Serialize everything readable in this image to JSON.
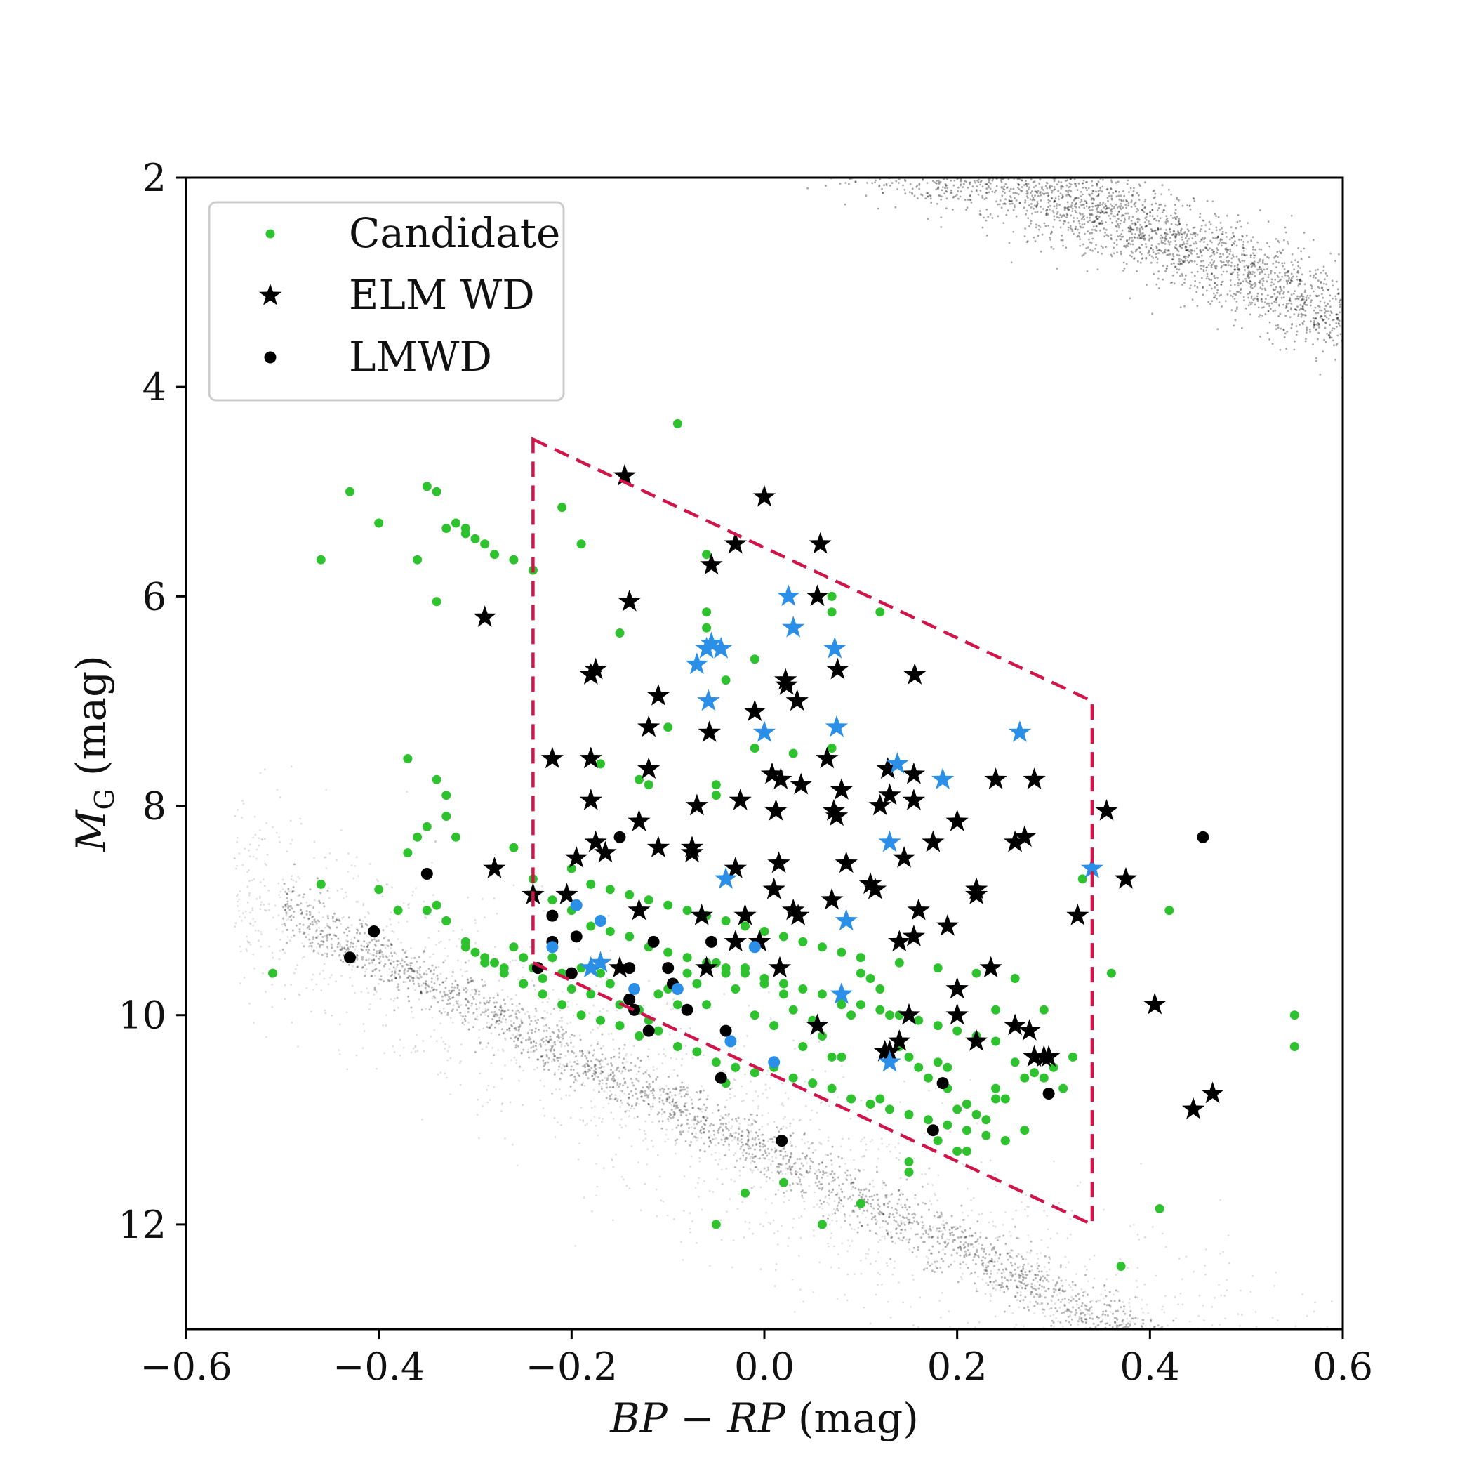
{
  "chart_data": {
    "type": "scatter",
    "title": "",
    "xlabel": "BP − RP (mag)",
    "ylabel": "M_G (mag)",
    "xlabel_parts": {
      "math": "BP − RP",
      "unit": "(mag)"
    },
    "ylabel_parts": {
      "math": "M",
      "subscript": "G",
      "unit": "(mag)"
    },
    "xlim": [
      -0.6,
      0.6
    ],
    "ylim": [
      13.0,
      2.0
    ],
    "y_inverted": true,
    "grid": false,
    "legend_position": "top-left",
    "x_ticks": [
      -0.6,
      -0.4,
      -0.2,
      0.0,
      0.2,
      0.4,
      0.6
    ],
    "x_tick_labels": [
      "−0.6",
      "−0.4",
      "−0.2",
      "0.0",
      "0.2",
      "0.4",
      "0.6"
    ],
    "y_ticks": [
      2,
      4,
      6,
      8,
      10,
      12
    ],
    "y_tick_labels": [
      "2",
      "4",
      "6",
      "8",
      "10",
      "12"
    ],
    "colors": {
      "candidate": "#2fc22f",
      "highlight": "#2b8fe8",
      "black": "#000000",
      "selection_box": "#d0154a",
      "background_points": "#000000"
    },
    "selection_region": {
      "style": "dashed",
      "vertices": [
        [
          -0.24,
          4.5
        ],
        [
          0.34,
          7.0
        ],
        [
          0.34,
          12.0
        ],
        [
          -0.24,
          9.5
        ]
      ]
    },
    "legend": [
      {
        "label": "Candidate",
        "marker": "small-dot",
        "color": "#2fc22f"
      },
      {
        "label": "ELM WD",
        "marker": "star",
        "color": "#000000"
      },
      {
        "label": "LMWD",
        "marker": "dot",
        "color": "#000000"
      }
    ],
    "series": [
      {
        "name": "Candidate",
        "marker": "small-dot",
        "color": "#2fc22f",
        "x": [
          -0.43,
          -0.4,
          -0.35,
          -0.34,
          -0.33,
          -0.32,
          -0.31,
          -0.31,
          -0.3,
          -0.29,
          -0.28,
          -0.26,
          -0.24,
          -0.46,
          -0.36,
          -0.34,
          -0.21,
          -0.19,
          -0.09,
          -0.06,
          -0.15,
          -0.06,
          -0.05,
          -0.01,
          0.07,
          0.07,
          -0.06,
          -0.04,
          -0.1,
          -0.17,
          -0.13,
          -0.12,
          -0.05,
          -0.01,
          0.03,
          0.07,
          0.12,
          -0.37,
          -0.34,
          -0.33,
          -0.33,
          -0.32,
          -0.35,
          -0.36,
          -0.37,
          -0.4,
          -0.38,
          -0.34,
          -0.33,
          -0.31,
          -0.3,
          -0.29,
          -0.28,
          -0.27,
          -0.26,
          -0.25,
          -0.25,
          -0.24,
          -0.23,
          -0.22,
          -0.21,
          -0.2,
          -0.19,
          -0.18,
          -0.17,
          -0.16,
          -0.15,
          -0.14,
          -0.13,
          -0.12,
          -0.11,
          -0.1,
          -0.09,
          -0.08,
          -0.07,
          -0.06,
          -0.05,
          -0.04,
          -0.03,
          -0.02,
          -0.01,
          0.0,
          0.01,
          0.02,
          0.03,
          0.04,
          0.05,
          0.06,
          0.07,
          0.08,
          0.09,
          0.1,
          0.11,
          0.12,
          0.13,
          0.14,
          0.15,
          0.16,
          0.17,
          0.18,
          0.19,
          0.2,
          0.21,
          0.22,
          0.23,
          0.24,
          0.25,
          0.26,
          0.27,
          0.28,
          0.29,
          0.3,
          0.31,
          0.32,
          -0.35,
          -0.33,
          -0.31,
          -0.29,
          -0.27,
          -0.25,
          -0.23,
          -0.21,
          -0.19,
          -0.17,
          -0.15,
          -0.13,
          -0.11,
          -0.09,
          -0.07,
          -0.05,
          -0.03,
          -0.01,
          0.01,
          0.03,
          0.05,
          0.07,
          0.09,
          0.11,
          0.13,
          0.15,
          0.17,
          0.19,
          0.21,
          0.23,
          0.25,
          -0.26,
          -0.24,
          -0.22,
          -0.2,
          -0.18,
          -0.16,
          -0.14,
          -0.12,
          -0.1,
          -0.08,
          -0.06,
          -0.04,
          -0.02,
          0.0,
          0.02,
          0.04,
          0.06,
          0.08,
          0.1,
          0.12,
          0.14,
          0.16,
          0.18,
          0.2,
          0.22,
          0.24,
          -0.2,
          -0.18,
          -0.16,
          -0.14,
          -0.12,
          -0.1,
          -0.08,
          -0.06,
          -0.04,
          -0.02,
          0.0,
          0.02,
          0.04,
          0.06,
          0.08,
          0.1,
          0.14,
          0.18,
          0.22,
          0.26,
          -0.05,
          -0.02,
          0.02,
          0.06,
          0.1,
          0.15,
          0.2,
          0.25,
          -0.51,
          -0.46,
          0.37,
          0.41,
          0.42,
          0.55,
          0.55,
          0.36,
          0.33,
          0.29,
          0.27,
          0.24,
          0.21,
          0.18,
          0.15,
          0.12,
          -0.04,
          0.08,
          0.19,
          0.24
        ],
        "y": [
          5.0,
          5.3,
          4.95,
          5.0,
          5.35,
          5.3,
          5.35,
          5.4,
          5.45,
          5.5,
          5.6,
          5.65,
          5.75,
          5.65,
          5.65,
          6.05,
          5.15,
          5.5,
          4.35,
          5.6,
          6.35,
          6.15,
          7.8,
          6.6,
          6.0,
          6.15,
          6.3,
          6.8,
          7.25,
          7.6,
          7.75,
          7.8,
          7.9,
          7.45,
          7.5,
          7.45,
          6.15,
          7.55,
          7.75,
          7.9,
          8.1,
          8.3,
          8.2,
          8.3,
          8.45,
          8.8,
          9.0,
          8.95,
          9.1,
          9.3,
          9.4,
          9.45,
          9.5,
          9.55,
          9.35,
          9.45,
          9.7,
          9.55,
          9.65,
          9.45,
          9.6,
          9.75,
          9.55,
          9.8,
          9.6,
          9.7,
          9.9,
          9.85,
          9.95,
          10.05,
          9.8,
          9.75,
          9.9,
          9.6,
          9.7,
          9.9,
          9.5,
          9.6,
          9.75,
          9.55,
          10.0,
          9.7,
          10.1,
          9.8,
          9.95,
          10.3,
          10.05,
          10.2,
          10.4,
          9.9,
          10.0,
          9.6,
          9.65,
          9.75,
          10.0,
          10.3,
          10.4,
          10.5,
          10.6,
          10.45,
          10.7,
          10.9,
          10.85,
          10.95,
          11.0,
          10.7,
          10.8,
          10.45,
          10.6,
          10.55,
          10.6,
          10.5,
          10.7,
          10.4,
          9.0,
          9.1,
          9.35,
          9.5,
          9.6,
          9.7,
          9.8,
          9.9,
          10.0,
          10.05,
          10.1,
          10.2,
          10.15,
          10.3,
          10.35,
          10.45,
          10.5,
          10.55,
          10.5,
          10.6,
          10.65,
          10.7,
          10.8,
          10.85,
          10.9,
          10.95,
          11.0,
          11.05,
          11.1,
          11.15,
          11.2,
          8.4,
          8.7,
          8.9,
          9.0,
          9.15,
          9.2,
          9.25,
          9.35,
          9.4,
          9.45,
          9.5,
          9.55,
          9.6,
          9.65,
          9.7,
          9.75,
          9.8,
          9.85,
          9.9,
          9.95,
          10.0,
          10.05,
          10.1,
          10.15,
          10.2,
          10.25,
          8.6,
          8.75,
          8.8,
          8.85,
          8.9,
          8.95,
          9.0,
          9.05,
          9.1,
          9.15,
          9.2,
          9.25,
          9.3,
          9.35,
          9.4,
          9.45,
          9.5,
          9.55,
          9.6,
          9.65,
          12.0,
          11.7,
          11.6,
          12.0,
          11.8,
          11.5,
          11.3,
          11.2,
          9.6,
          8.75,
          12.4,
          11.85,
          9.0,
          10.0,
          10.3,
          9.6,
          8.7,
          9.95,
          11.1,
          9.95,
          11.3,
          11.2,
          11.4,
          10.8,
          10.65,
          10.4,
          10.5,
          10.8
        ],
        "size": 7
      },
      {
        "name": "ELM WD",
        "marker": "star",
        "color": "#000000",
        "x": [
          -0.145,
          -0.29,
          -0.14,
          -0.055,
          -0.03,
          0.0,
          0.058,
          0.055,
          0.023,
          0.034,
          0.076,
          0.156,
          -0.18,
          -0.175,
          -0.11,
          -0.12,
          -0.057,
          -0.01,
          0.017,
          0.022,
          0.038,
          -0.22,
          -0.18,
          -0.12,
          -0.025,
          0.008,
          0.065,
          0.08,
          0.128,
          0.155,
          0.24,
          0.28,
          -0.18,
          -0.07,
          -0.13,
          0.012,
          0.075,
          0.072,
          0.12,
          0.13,
          0.155,
          0.2,
          0.26,
          0.22,
          0.355,
          -0.28,
          -0.195,
          -0.175,
          -0.165,
          -0.11,
          -0.075,
          -0.075,
          -0.03,
          -0.005,
          0.015,
          0.085,
          0.11,
          0.145,
          0.175,
          -0.24,
          -0.205,
          -0.13,
          -0.065,
          -0.02,
          0.03,
          0.035,
          0.07,
          0.115,
          0.14,
          0.22,
          0.27,
          -0.15,
          -0.06,
          -0.03,
          0.016,
          0.01,
          0.19,
          0.155,
          0.2,
          0.2,
          0.22,
          0.235,
          0.26,
          0.275,
          0.28,
          0.29,
          0.295,
          0.405,
          0.325,
          0.375,
          0.055,
          0.125,
          0.15,
          0.14,
          0.13,
          0.445,
          0.465,
          0.16
        ],
        "y": [
          4.85,
          6.2,
          6.05,
          5.7,
          5.5,
          5.05,
          5.5,
          6.0,
          6.85,
          7.0,
          6.7,
          6.75,
          6.75,
          6.7,
          6.95,
          7.25,
          7.3,
          7.1,
          7.75,
          6.8,
          7.8,
          7.55,
          7.55,
          7.65,
          7.95,
          7.7,
          7.55,
          7.85,
          7.65,
          7.7,
          7.75,
          7.75,
          7.95,
          8.0,
          8.15,
          8.05,
          8.1,
          8.05,
          8.0,
          7.9,
          7.95,
          8.15,
          8.35,
          8.8,
          8.05,
          8.6,
          8.5,
          8.35,
          8.45,
          8.4,
          8.45,
          8.4,
          8.6,
          9.3,
          8.55,
          8.55,
          8.75,
          8.5,
          8.35,
          8.85,
          8.85,
          9.0,
          9.05,
          9.05,
          9.0,
          9.05,
          8.9,
          8.8,
          9.3,
          8.85,
          8.3,
          9.55,
          9.55,
          9.3,
          9.55,
          8.8,
          9.15,
          9.25,
          9.75,
          10.0,
          10.25,
          9.55,
          10.1,
          10.15,
          10.4,
          10.4,
          10.4,
          9.9,
          9.05,
          8.7,
          10.1,
          10.35,
          10.0,
          10.25,
          10.35,
          10.9,
          10.75,
          9.0
        ],
        "size": 30
      },
      {
        "name": "",
        "marker": "star",
        "color": "#2b8fe8",
        "x": [
          0.025,
          0.03,
          -0.055,
          -0.06,
          -0.045,
          -0.07,
          0.073,
          0.0,
          0.075,
          0.138,
          0.185,
          0.265,
          -0.058,
          -0.04,
          0.085,
          0.13,
          0.34,
          0.08,
          0.13,
          -0.17,
          -0.18
        ],
        "y": [
          6.0,
          6.3,
          6.45,
          6.5,
          6.5,
          6.65,
          6.5,
          7.3,
          7.25,
          7.6,
          7.75,
          7.3,
          7.0,
          8.7,
          9.1,
          8.35,
          8.6,
          9.8,
          10.45,
          9.5,
          9.55
        ],
        "size": 28
      },
      {
        "name": "LMWD",
        "marker": "dot",
        "color": "#000000",
        "x": [
          -0.35,
          -0.405,
          -0.43,
          -0.22,
          -0.22,
          -0.2,
          -0.195,
          -0.14,
          -0.14,
          -0.15,
          -0.12,
          -0.115,
          -0.1,
          -0.095,
          -0.135,
          -0.08,
          -0.055,
          -0.04,
          -0.045,
          0.018,
          0.175,
          0.185,
          0.295,
          0.455,
          -0.235
        ],
        "y": [
          8.65,
          9.2,
          9.45,
          9.05,
          9.3,
          9.6,
          9.25,
          9.85,
          9.55,
          8.3,
          10.15,
          9.3,
          9.55,
          9.7,
          9.95,
          9.95,
          9.3,
          10.15,
          10.6,
          11.2,
          11.1,
          10.65,
          10.75,
          8.3,
          9.55
        ],
        "size": 9
      },
      {
        "name": "",
        "marker": "dot",
        "color": "#2b8fe8",
        "x": [
          -0.195,
          -0.17,
          -0.22,
          -0.135,
          -0.09,
          -0.035,
          -0.01,
          0.01
        ],
        "y": [
          8.95,
          9.1,
          9.35,
          9.75,
          9.75,
          10.25,
          9.35,
          10.45
        ],
        "size": 9
      }
    ]
  }
}
